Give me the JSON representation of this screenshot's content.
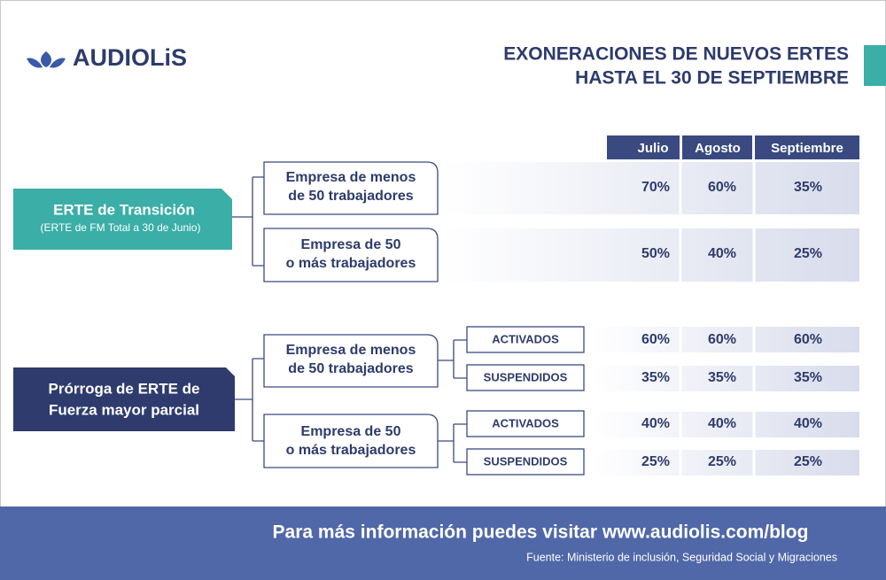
{
  "header": {
    "logo": "AUDIOLiS",
    "title": [
      "EXONERACIONES DE NUEVOS ERTES",
      "HASTA EL 30 DE SEPTIEMBRE"
    ]
  },
  "columns": [
    "Julio",
    "Agosto",
    "Septiembre"
  ],
  "sections": [
    {
      "label": "ERTE de Transición",
      "sublabel": "(ERTE de FM Total a 30 de Junio)",
      "groups": [
        {
          "label": [
            "Empresa de menos",
            "de 50 trabajadores"
          ],
          "values": [
            "70%",
            "60%",
            "35%"
          ]
        },
        {
          "label": [
            "Empresa de 50",
            "o más trabajadores"
          ],
          "values": [
            "50%",
            "40%",
            "25%"
          ]
        }
      ]
    },
    {
      "label": [
        "Prórroga de ERTE de",
        "Fuerza mayor parcial"
      ],
      "groups": [
        {
          "label": [
            "Empresa de menos",
            "de 50 trabajadores"
          ],
          "rows": [
            {
              "status": "ACTIVADOS",
              "values": [
                "60%",
                "60%",
                "60%"
              ]
            },
            {
              "status": "SUSPENDIDOS",
              "values": [
                "35%",
                "35%",
                "35%"
              ]
            }
          ]
        },
        {
          "label": [
            "Empresa de 50",
            "o más trabajadores"
          ],
          "rows": [
            {
              "status": "ACTIVADOS",
              "values": [
                "40%",
                "40%",
                "40%"
              ]
            },
            {
              "status": "SUSPENDIDOS",
              "values": [
                "25%",
                "25%",
                "25%"
              ]
            }
          ]
        }
      ]
    }
  ],
  "footer": {
    "text": "Para más información puedes visitar www.audiolis.com/blog",
    "source": "Fuente: Ministerio de inclusión, Seguridad Social y Migraciones"
  }
}
